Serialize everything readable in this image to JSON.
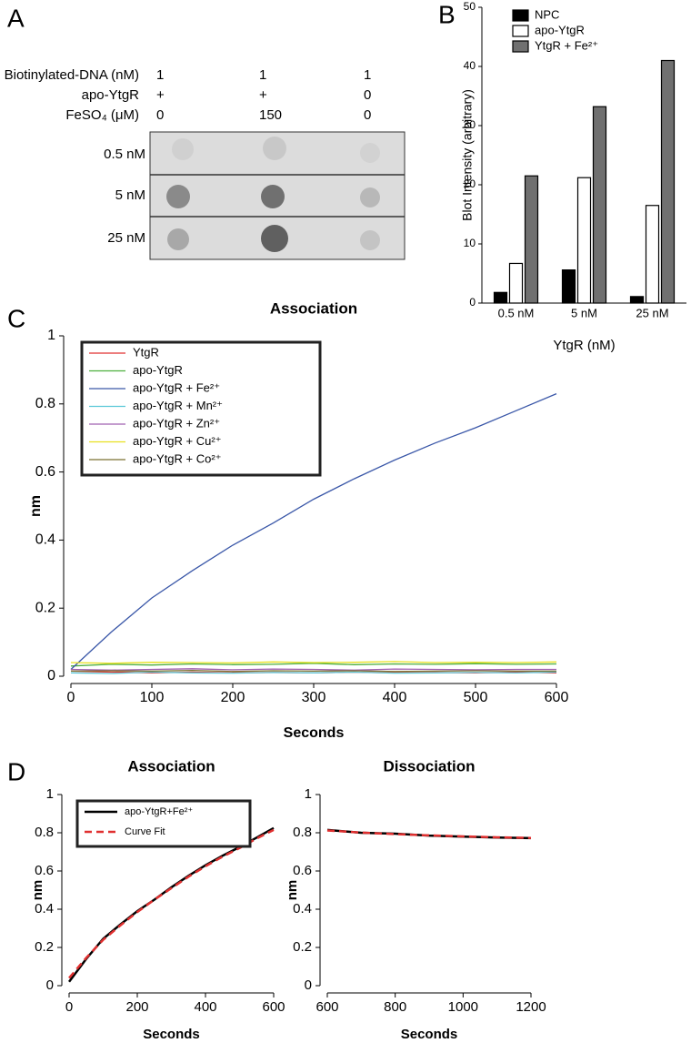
{
  "panel_labels": [
    "A",
    "B",
    "C",
    "D"
  ],
  "dot_blot": {
    "row_headers": [
      "Biotinylated-DNA (nM)",
      "apo-YtgR",
      "FeSO₄ (μM)"
    ],
    "rows": [
      [
        "1",
        "1",
        "1"
      ],
      [
        "+",
        "+",
        "0"
      ],
      [
        "0",
        "150",
        "0"
      ]
    ],
    "blot_rows": [
      "0.5 nM",
      "5 nM",
      "25 nM"
    ]
  },
  "chart_data": [
    {
      "type": "bar",
      "ylabel": "Blot Intensity (arbitrary)",
      "xlabel": "YtgR (nM)",
      "categories": [
        "0.5 nM",
        "5 nM",
        "25 nM"
      ],
      "series": [
        {
          "name": "NPC",
          "color": "#000000",
          "values": [
            1.8,
            5.6,
            1.1
          ]
        },
        {
          "name": "apo-YtgR",
          "color": "#ffffff",
          "values": [
            6.7,
            21.2,
            16.5
          ]
        },
        {
          "name": "YtgR + Fe²⁺",
          "color": "#707070",
          "values": [
            21.5,
            33.2,
            41.0
          ]
        }
      ],
      "ylim": [
        0,
        50
      ],
      "yticks": [
        0,
        10,
        20,
        30,
        40,
        50
      ],
      "legend": "upper left"
    },
    {
      "type": "line",
      "title": "Association",
      "xlabel": "Seconds",
      "ylabel": "nm",
      "x": [
        0,
        50,
        100,
        150,
        200,
        250,
        300,
        350,
        400,
        450,
        500,
        550,
        600
      ],
      "series": [
        {
          "name": "YtgR",
          "color": "#e03030",
          "values": [
            0.015,
            0.012,
            0.01,
            0.012,
            0.01,
            0.011,
            0.01,
            0.012,
            0.01,
            0.011,
            0.01,
            0.012,
            0.01
          ]
        },
        {
          "name": "apo-YtgR",
          "color": "#4caf3c",
          "values": [
            0.03,
            0.035,
            0.033,
            0.036,
            0.034,
            0.035,
            0.038,
            0.034,
            0.036,
            0.035,
            0.037,
            0.035,
            0.036
          ]
        },
        {
          "name": "apo-YtgR + Fe²⁺",
          "color": "#3a57a8",
          "values": [
            0.02,
            0.13,
            0.23,
            0.31,
            0.385,
            0.45,
            0.52,
            0.58,
            0.635,
            0.685,
            0.73,
            0.78,
            0.83
          ]
        },
        {
          "name": "apo-YtgR + Mn²⁺",
          "color": "#5bc8d8",
          "values": [
            0.01,
            0.008,
            0.012,
            0.01,
            0.009,
            0.011,
            0.01,
            0.012,
            0.009,
            0.01,
            0.011,
            0.01,
            0.012
          ]
        },
        {
          "name": "apo-YtgR + Zn²⁺",
          "color": "#a060b0",
          "values": [
            0.02,
            0.018,
            0.02,
            0.022,
            0.019,
            0.021,
            0.02,
            0.018,
            0.021,
            0.02,
            0.019,
            0.02,
            0.02
          ]
        },
        {
          "name": "apo-YtgR + Cu²⁺",
          "color": "#e8e020",
          "values": [
            0.04,
            0.038,
            0.041,
            0.04,
            0.039,
            0.042,
            0.04,
            0.041,
            0.043,
            0.04,
            0.041,
            0.04,
            0.042
          ]
        },
        {
          "name": "apo-YtgR + Co²⁺",
          "color": "#7a7030",
          "values": [
            0.015,
            0.016,
            0.015,
            0.017,
            0.014,
            0.016,
            0.015,
            0.016,
            0.014,
            0.015,
            0.016,
            0.015,
            0.015
          ]
        }
      ],
      "xlim": [
        0,
        600
      ],
      "xticks": [
        0,
        100,
        200,
        300,
        400,
        500,
        600
      ],
      "ylim": [
        0,
        1
      ],
      "yticks": [
        0,
        0.2,
        0.4,
        0.6,
        0.8,
        1
      ],
      "legend": "upper left"
    },
    {
      "type": "line",
      "title": "Association",
      "xlabel": "Seconds",
      "ylabel": "nm",
      "x": [
        0,
        50,
        100,
        150,
        200,
        250,
        300,
        350,
        400,
        450,
        500,
        550,
        600
      ],
      "series": [
        {
          "name": "apo-YtgR+Fe²⁺",
          "color": "#000000",
          "values": [
            0.02,
            0.14,
            0.245,
            0.32,
            0.39,
            0.45,
            0.515,
            0.575,
            0.63,
            0.68,
            0.725,
            0.775,
            0.825
          ]
        },
        {
          "name": "Curve Fit",
          "color": "#e03030",
          "dashed": true,
          "values": [
            0.04,
            0.145,
            0.24,
            0.315,
            0.385,
            0.45,
            0.51,
            0.57,
            0.625,
            0.675,
            0.72,
            0.77,
            0.815
          ]
        }
      ],
      "xlim": [
        0,
        600
      ],
      "xticks": [
        0,
        200,
        400,
        600
      ],
      "ylim": [
        0,
        1
      ],
      "yticks": [
        0,
        0.2,
        0.4,
        0.6,
        0.8,
        1
      ],
      "legend": "upper left"
    },
    {
      "type": "line",
      "title": "Dissociation",
      "xlabel": "Seconds",
      "ylabel": "nm",
      "x": [
        600,
        700,
        800,
        900,
        1000,
        1100,
        1200
      ],
      "series": [
        {
          "color": "#000000",
          "values": [
            0.815,
            0.8,
            0.795,
            0.785,
            0.78,
            0.775,
            0.772
          ]
        },
        {
          "color": "#e03030",
          "dashed": true,
          "values": [
            0.812,
            0.801,
            0.793,
            0.786,
            0.781,
            0.776,
            0.773
          ]
        }
      ],
      "xlim": [
        600,
        1200
      ],
      "xticks": [
        600,
        800,
        1000,
        1200
      ],
      "ylim": [
        0,
        1
      ],
      "yticks": [
        0,
        0.2,
        0.4,
        0.6,
        0.8,
        1
      ]
    }
  ]
}
